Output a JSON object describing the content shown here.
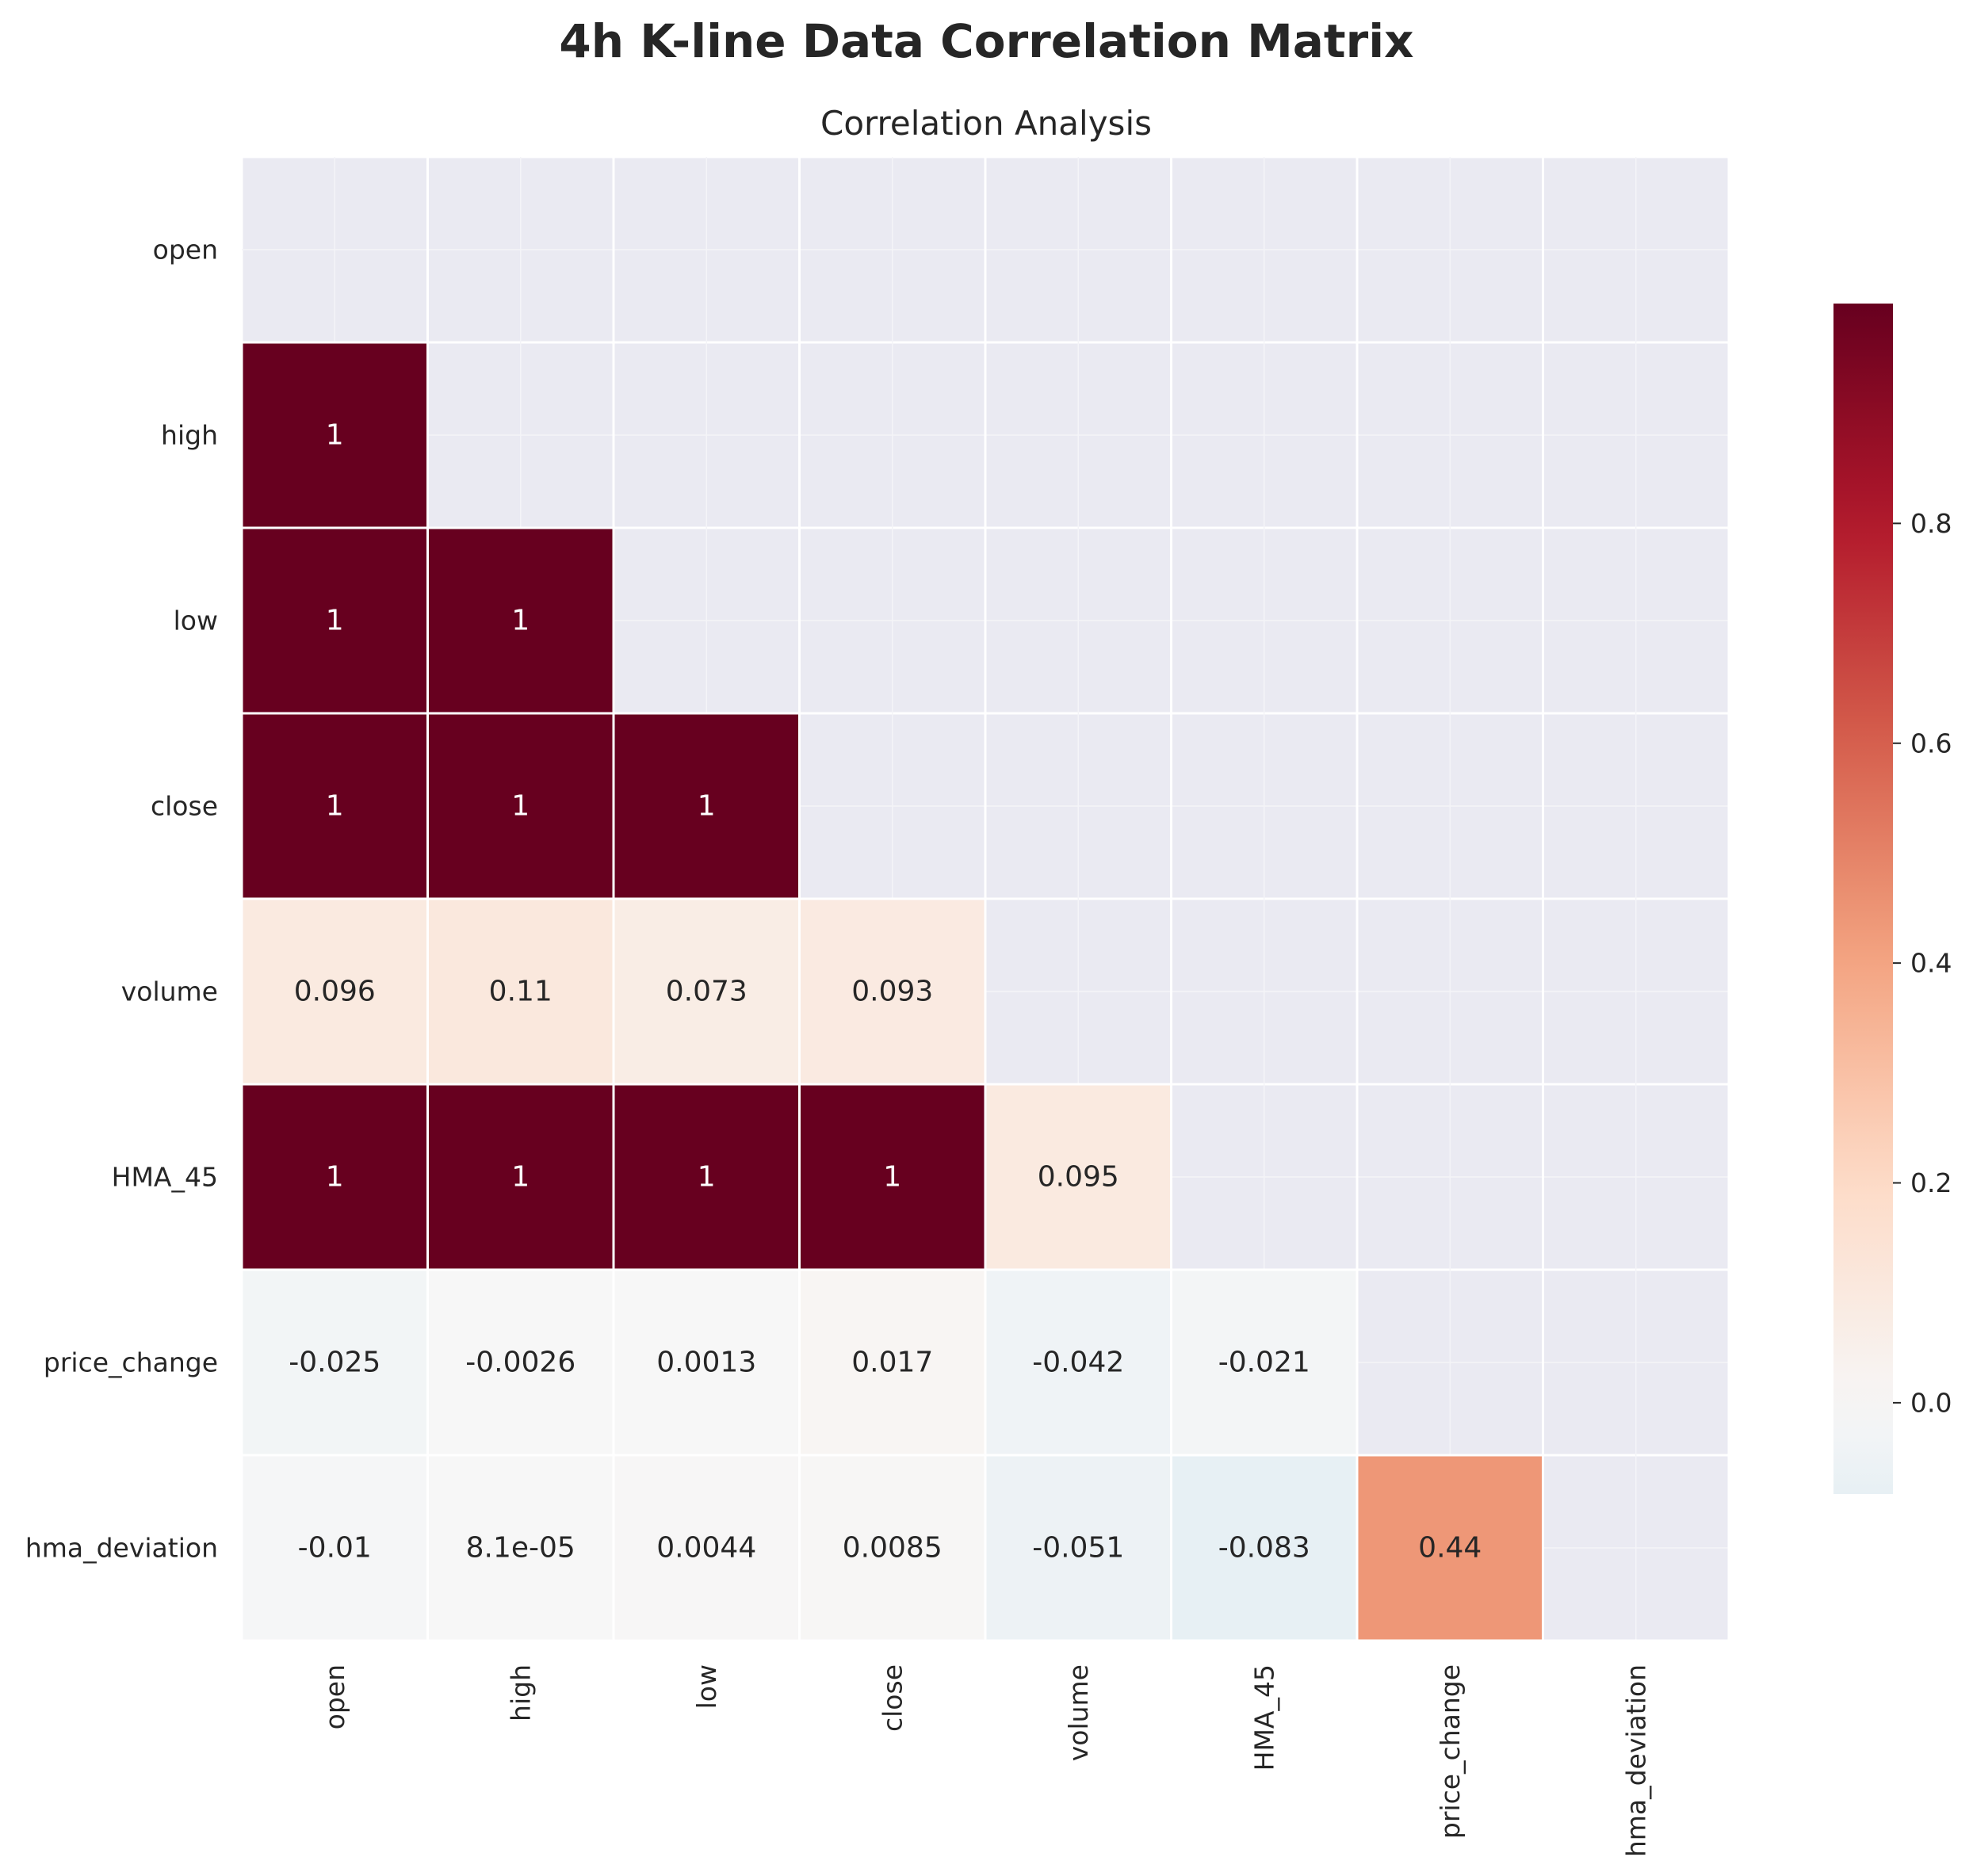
{
  "chart_data": {
    "type": "heatmap",
    "title": "4h K-line Data Correlation Matrix",
    "subtitle": "Correlation Analysis",
    "variables": [
      "open",
      "high",
      "low",
      "close",
      "volume",
      "HMA_45",
      "price_change",
      "hma_deviation"
    ],
    "mask": "upper triangle including diagonal",
    "cells": [
      {
        "row": "high",
        "col": "open",
        "value": 1,
        "label": "1"
      },
      {
        "row": "low",
        "col": "open",
        "value": 1,
        "label": "1"
      },
      {
        "row": "low",
        "col": "high",
        "value": 1,
        "label": "1"
      },
      {
        "row": "close",
        "col": "open",
        "value": 1,
        "label": "1"
      },
      {
        "row": "close",
        "col": "high",
        "value": 1,
        "label": "1"
      },
      {
        "row": "close",
        "col": "low",
        "value": 1,
        "label": "1"
      },
      {
        "row": "volume",
        "col": "open",
        "value": 0.096,
        "label": "0.096"
      },
      {
        "row": "volume",
        "col": "high",
        "value": 0.11,
        "label": "0.11"
      },
      {
        "row": "volume",
        "col": "low",
        "value": 0.073,
        "label": "0.073"
      },
      {
        "row": "volume",
        "col": "close",
        "value": 0.093,
        "label": "0.093"
      },
      {
        "row": "HMA_45",
        "col": "open",
        "value": 1,
        "label": "1"
      },
      {
        "row": "HMA_45",
        "col": "high",
        "value": 1,
        "label": "1"
      },
      {
        "row": "HMA_45",
        "col": "low",
        "value": 1,
        "label": "1"
      },
      {
        "row": "HMA_45",
        "col": "close",
        "value": 1,
        "label": "1"
      },
      {
        "row": "HMA_45",
        "col": "volume",
        "value": 0.095,
        "label": "0.095"
      },
      {
        "row": "price_change",
        "col": "open",
        "value": -0.025,
        "label": "-0.025"
      },
      {
        "row": "price_change",
        "col": "high",
        "value": -0.0026,
        "label": "-0.0026"
      },
      {
        "row": "price_change",
        "col": "low",
        "value": 0.0013,
        "label": "0.0013"
      },
      {
        "row": "price_change",
        "col": "close",
        "value": 0.017,
        "label": "0.017"
      },
      {
        "row": "price_change",
        "col": "volume",
        "value": -0.042,
        "label": "-0.042"
      },
      {
        "row": "price_change",
        "col": "HMA_45",
        "value": -0.021,
        "label": "-0.021"
      },
      {
        "row": "hma_deviation",
        "col": "open",
        "value": -0.01,
        "label": "-0.01"
      },
      {
        "row": "hma_deviation",
        "col": "high",
        "value": 8.1e-05,
        "label": "8.1e-05"
      },
      {
        "row": "hma_deviation",
        "col": "low",
        "value": 0.0044,
        "label": "0.0044"
      },
      {
        "row": "hma_deviation",
        "col": "close",
        "value": 0.0085,
        "label": "0.0085"
      },
      {
        "row": "hma_deviation",
        "col": "volume",
        "value": -0.051,
        "label": "-0.051"
      },
      {
        "row": "hma_deviation",
        "col": "HMA_45",
        "value": -0.083,
        "label": "-0.083"
      },
      {
        "row": "hma_deviation",
        "col": "price_change",
        "value": 0.44,
        "label": "0.44"
      }
    ],
    "colorbar": {
      "colormap": "RdBu_r",
      "center": 0,
      "range": [
        -0.083,
        1
      ],
      "ticks": [
        0.0,
        0.2,
        0.4,
        0.6,
        0.8
      ],
      "tick_labels": [
        "0.0",
        "0.2",
        "0.4",
        "0.6",
        "0.8"
      ]
    },
    "colors": {
      "background": "#eaeaf2",
      "grid": "#ffffff",
      "text_dark": "#262626",
      "text_light": "#ffffff"
    }
  }
}
